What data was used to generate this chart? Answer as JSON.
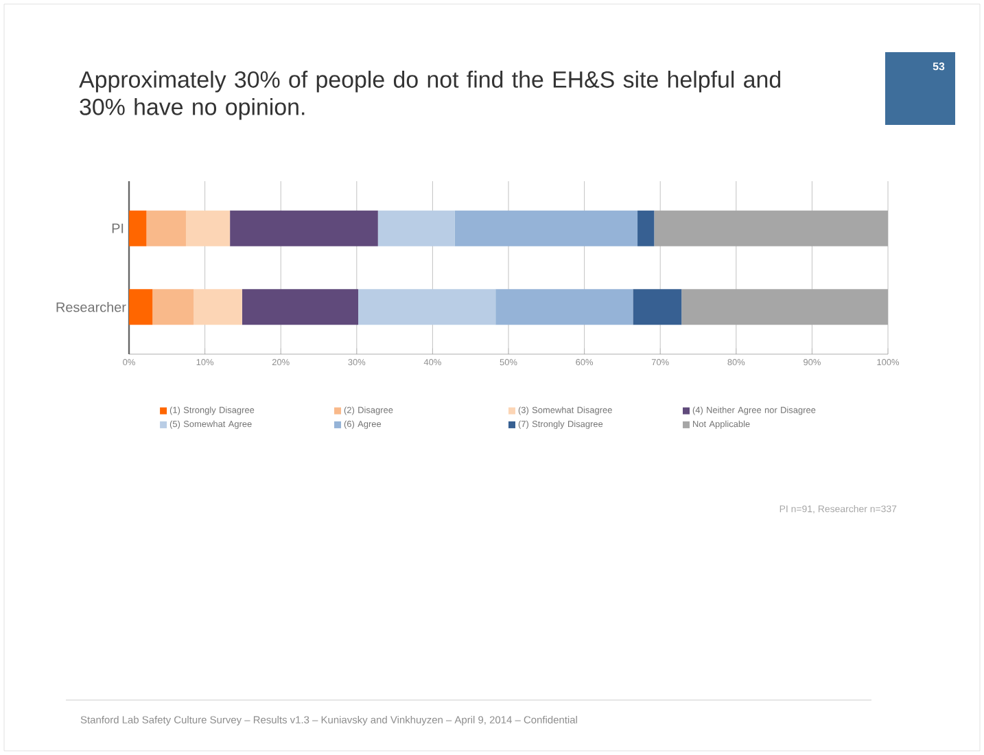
{
  "chart_data": {
    "type": "bar",
    "orientation": "horizontal",
    "stacked": true,
    "title": "Approximately 30% of people do not find the EH&S site helpful and 30% have no opinion.",
    "categories": [
      "PI",
      "Researcher"
    ],
    "series": [
      {
        "name": "(1) Strongly Disagree",
        "color": "#ff6600",
        "values": [
          2.3,
          3.1
        ]
      },
      {
        "name": "(2) Disagree",
        "color": "#f9b98a",
        "values": [
          5.2,
          5.4
        ]
      },
      {
        "name": "(3) Somewhat Disagree",
        "color": "#fcd5b5",
        "values": [
          5.8,
          6.4
        ]
      },
      {
        "name": "(4) Neither Agree nor Disagree",
        "color": "#604a7b",
        "values": [
          19.5,
          15.3
        ]
      },
      {
        "name": "(5) Somewhat Agree",
        "color": "#b9cde5",
        "values": [
          10.1,
          18.1
        ]
      },
      {
        "name": "(6) Agree",
        "color": "#95b3d7",
        "values": [
          24.1,
          18.1
        ]
      },
      {
        "name": "(7) Strongly Disagree",
        "color": "#376092",
        "values": [
          2.2,
          6.4
        ]
      },
      {
        "name": "Not Applicable",
        "color": "#a6a6a6",
        "values": [
          30.8,
          27.2
        ]
      }
    ],
    "xlim": [
      0,
      100
    ],
    "xticks": [
      {
        "value": 0,
        "label": "0%"
      },
      {
        "value": 10,
        "label": "10%"
      },
      {
        "value": 20,
        "label": "20%"
      },
      {
        "value": 30,
        "label": "30%"
      },
      {
        "value": 40,
        "label": "40%"
      },
      {
        "value": 50,
        "label": "50%"
      },
      {
        "value": 60,
        "label": "60%"
      },
      {
        "value": 70,
        "label": "70%"
      },
      {
        "value": 80,
        "label": "80%"
      },
      {
        "value": 90,
        "label": "90%"
      },
      {
        "value": 100,
        "label": "100%"
      }
    ],
    "grid": "x",
    "legend": "bottom",
    "annotations": [
      "PI n=91, Researcher  n=337",
      "Stanford Lab Safety Culture Survey –  Results v1.3 – Kuniavsky and Vinkhuyzen – April 9, 2014 – Confidential",
      "53"
    ]
  }
}
